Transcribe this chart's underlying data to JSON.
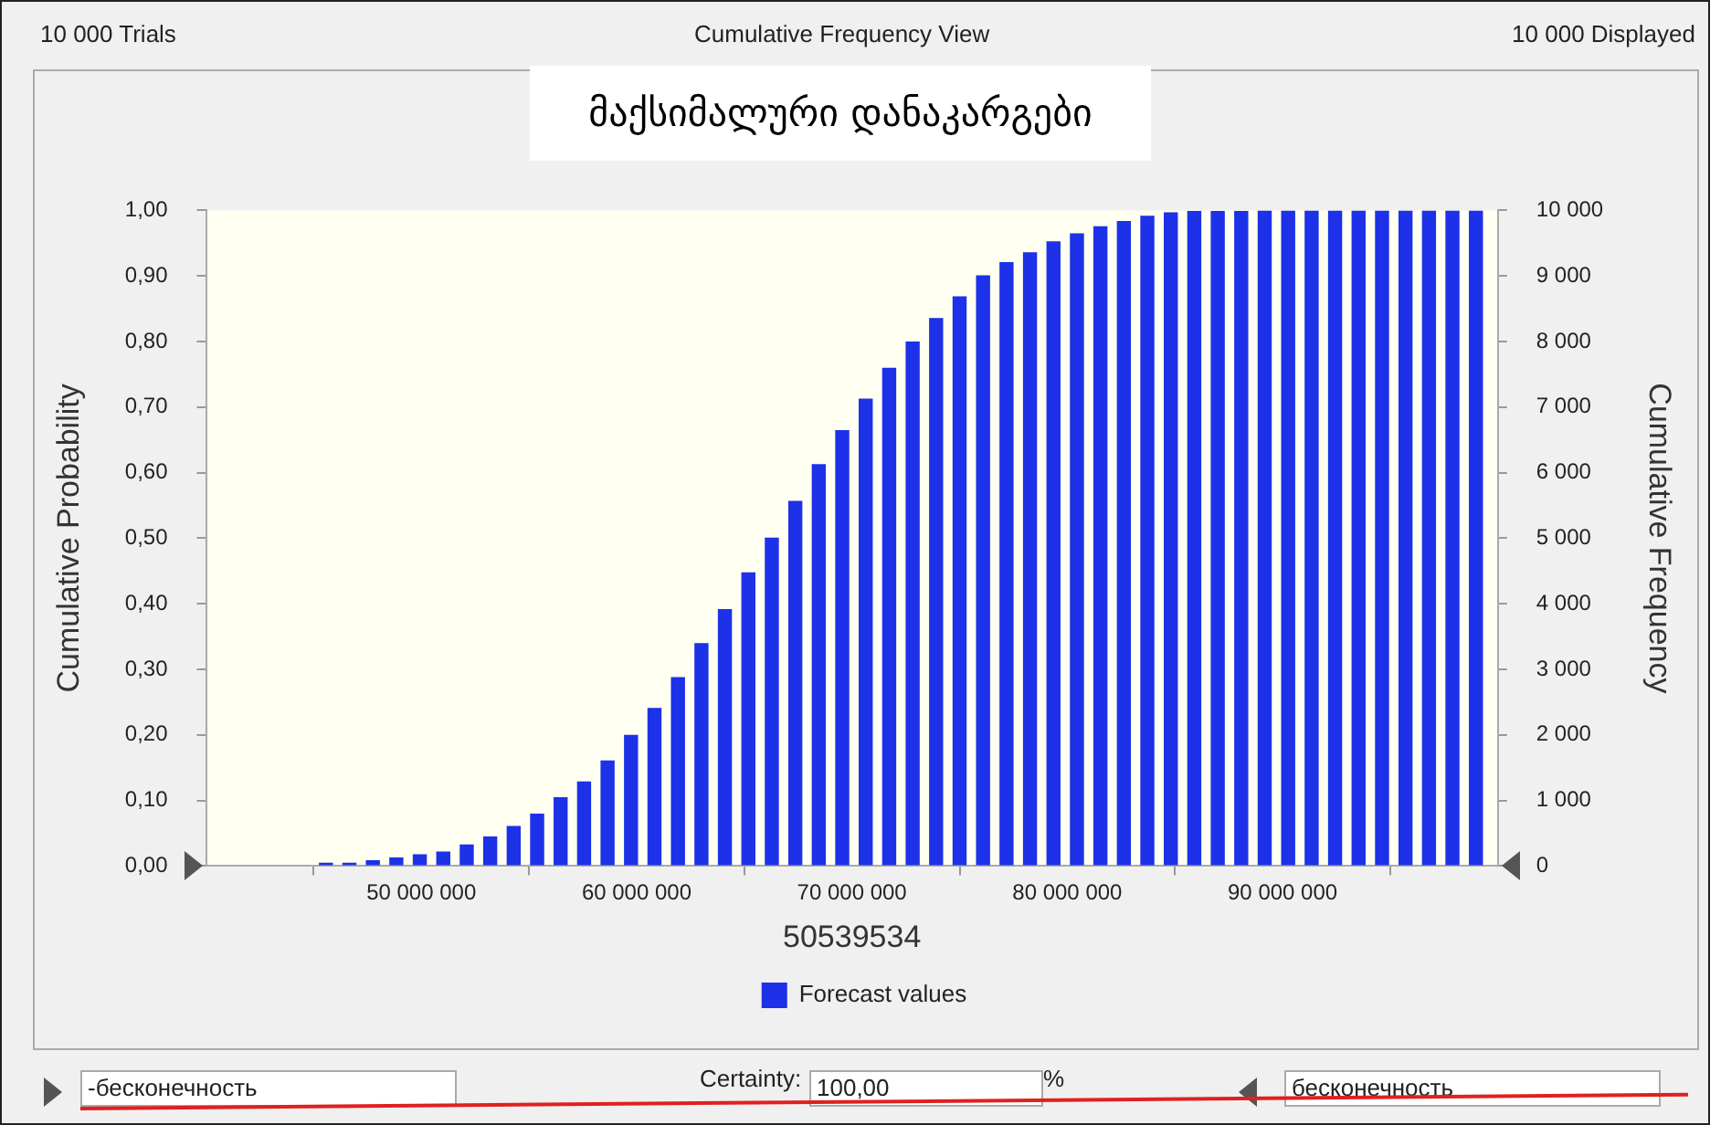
{
  "chart_data": {
    "type": "bar",
    "title": "მაქსიმალური დანაკარგები",
    "xlabel": "50539534",
    "ylabel": "Cumulative Probability",
    "y2label": "Cumulative Frequency",
    "x": [
      45570000,
      46660000,
      47750000,
      48840000,
      49930000,
      51020000,
      52110000,
      53200000,
      54290000,
      55380000,
      56470000,
      57560000,
      58650000,
      59740000,
      60830000,
      61920000,
      63010000,
      64100000,
      65190000,
      66280000,
      67370000,
      68460000,
      69550000,
      70640000,
      71730000,
      72820000,
      73910000,
      75000000,
      76090000,
      77180000,
      78270000,
      79360000,
      80450000,
      81540000,
      82630000,
      83720000,
      84810000,
      85900000,
      86990000,
      88080000,
      89170000,
      90260000,
      91350000,
      92440000,
      93530000,
      94620000,
      95710000,
      96800000,
      97890000,
      98980000
    ],
    "series": [
      {
        "name": "Forecast values",
        "color": "#1c31e8",
        "values": [
          0.005,
          0.005,
          0.009,
          0.013,
          0.018,
          0.022,
          0.033,
          0.045,
          0.061,
          0.08,
          0.105,
          0.129,
          0.161,
          0.2,
          0.241,
          0.288,
          0.34,
          0.392,
          0.448,
          0.501,
          0.557,
          0.613,
          0.665,
          0.713,
          0.76,
          0.8,
          0.836,
          0.869,
          0.901,
          0.921,
          0.936,
          0.953,
          0.965,
          0.976,
          0.984,
          0.992,
          0.997,
          0.999,
          0.999,
          0.999,
          1.0,
          1.0,
          1.0,
          1.0,
          1.0,
          1.0,
          1.0,
          1.0,
          1.0,
          1.0
        ]
      }
    ],
    "xlim": [
      40000000,
      100000000
    ],
    "xticks": [
      {
        "value": 50000000,
        "label": "50 000 000"
      },
      {
        "value": 60000000,
        "label": "60 000 000"
      },
      {
        "value": 70000000,
        "label": "70 000 000"
      },
      {
        "value": 80000000,
        "label": "80 000 000"
      },
      {
        "value": 90000000,
        "label": "90 000 000"
      }
    ],
    "ylim": [
      0,
      1
    ],
    "yticks": [
      {
        "value": 0,
        "label": "0,00"
      },
      {
        "value": 0.1,
        "label": "0,10"
      },
      {
        "value": 0.2,
        "label": "0,20"
      },
      {
        "value": 0.3,
        "label": "0,30"
      },
      {
        "value": 0.4,
        "label": "0,40"
      },
      {
        "value": 0.5,
        "label": "0,50"
      },
      {
        "value": 0.6,
        "label": "0,60"
      },
      {
        "value": 0.7,
        "label": "0,70"
      },
      {
        "value": 0.8,
        "label": "0,80"
      },
      {
        "value": 0.9,
        "label": "0,90"
      },
      {
        "value": 1,
        "label": "1,00"
      }
    ],
    "y2lim": [
      0,
      10000
    ],
    "y2ticks": [
      0,
      {
        "value": 1000,
        "label": "1 000"
      },
      {
        "value": 2000,
        "label": "2 000"
      },
      {
        "value": 3000,
        "label": "3 000"
      },
      {
        "value": 4000,
        "label": "4 000"
      },
      {
        "value": 5000,
        "label": "5 000"
      },
      {
        "value": 6000,
        "label": "6 000"
      },
      {
        "value": 7000,
        "label": "7 000"
      },
      {
        "value": 8000,
        "label": "8 000"
      },
      {
        "value": 9000,
        "label": "9 000"
      },
      {
        "value": 10000,
        "label": "10 000"
      }
    ],
    "grid": false,
    "legend": "bottom",
    "annotations": [
      "10 000 Trials",
      "Cumulative Frequency View",
      "10 000 Displayed",
      "-бесконечность",
      "Certainty:",
      "100,00",
      "%",
      "бесконечность"
    ]
  }
}
